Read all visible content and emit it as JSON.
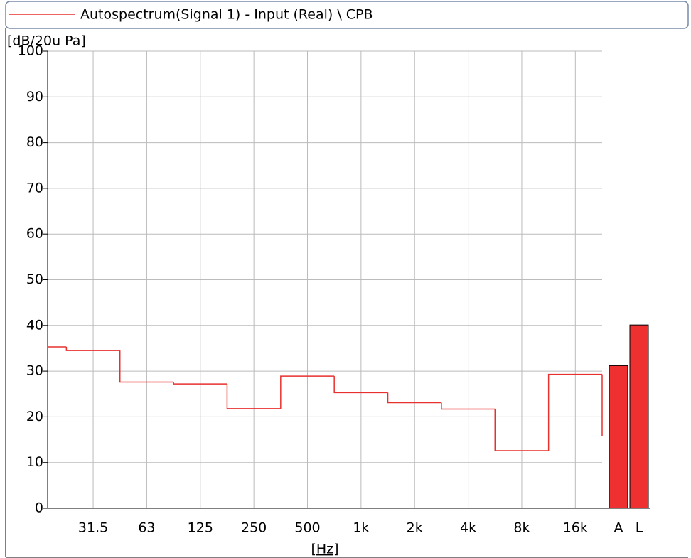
{
  "chart_data": {
    "type": "step",
    "series": [
      {
        "name": "Autospectrum(Signal 1) - Input (Real) \\ CPB",
        "color": "#e8312e",
        "values": [
          35.3,
          34.5,
          27.6,
          27.2,
          21.8,
          28.9,
          25.3,
          23.1,
          21.7,
          12.6,
          29.3,
          15.8
        ]
      }
    ],
    "categories": [
      null,
      "31.5",
      "63",
      "125",
      "250",
      "500",
      "1k",
      "2k",
      "4k",
      "8k",
      "16k",
      null
    ],
    "ylabel": "[dB/20u Pa]",
    "xlabel": "[Hz]",
    "bar_categories": [
      "A",
      "L"
    ],
    "bar_values": [
      31.2,
      40.1
    ],
    "bar_color": "#ee3030",
    "xlim": [
      0.15,
      10.5
    ],
    "ylim": [
      0,
      100
    ],
    "yticks": [
      0,
      10,
      20,
      30,
      40,
      50,
      60,
      70,
      80,
      90,
      100
    ],
    "grid": true
  }
}
